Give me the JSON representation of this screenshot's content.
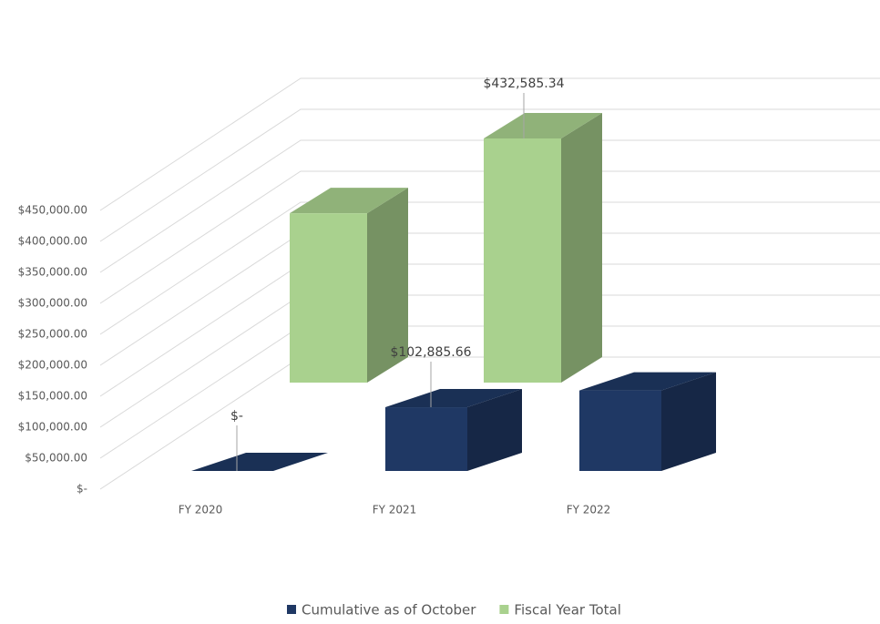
{
  "chart_data": {
    "type": "bar3d",
    "categories": [
      "FY 2020",
      "FY 2021",
      "FY 2022"
    ],
    "series": [
      {
        "name": "Cumulative as of October",
        "color": "#1f3864",
        "values": [
          0,
          102885.66,
          130000
        ],
        "value_labels": [
          "$-",
          "$102,885.66",
          null
        ]
      },
      {
        "name": "Fiscal Year Total",
        "color": "#a9d18e",
        "values": [
          null,
          300000,
          432585.34
        ],
        "value_labels": [
          null,
          null,
          "$432,585.34"
        ]
      }
    ],
    "ylim": [
      0,
      450000
    ],
    "yticks": [
      {
        "value": 0,
        "label": "$-"
      },
      {
        "value": 50000,
        "label": "$50,000.00"
      },
      {
        "value": 100000,
        "label": "$100,000.00"
      },
      {
        "value": 150000,
        "label": "$150,000.00"
      },
      {
        "value": 200000,
        "label": "$200,000.00"
      },
      {
        "value": 250000,
        "label": "$250,000.00"
      },
      {
        "value": 300000,
        "label": "$300,000.00"
      },
      {
        "value": 350000,
        "label": "$350,000.00"
      },
      {
        "value": 400000,
        "label": "$400,000.00"
      },
      {
        "value": 450000,
        "label": "$450,000.00"
      }
    ],
    "grid": true,
    "legend": "bottom"
  }
}
